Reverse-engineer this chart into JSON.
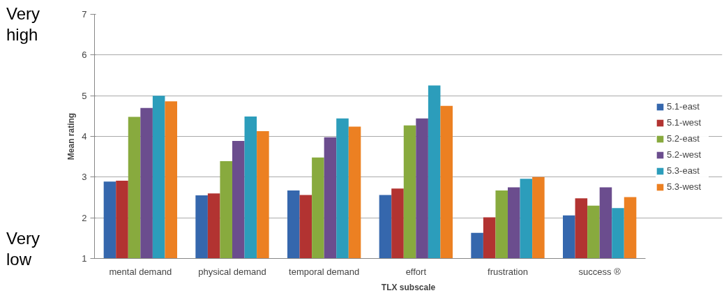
{
  "chart_data": {
    "type": "bar",
    "xlabel": "TLX subscale",
    "ylabel": "Mean rating",
    "categories": [
      "mental demand",
      "physical demand",
      "temporal demand",
      "effort",
      "frustration",
      "success ®"
    ],
    "series": [
      {
        "name": "5.1-east",
        "color": "#3567ad",
        "values": [
          2.89,
          2.55,
          2.67,
          2.56,
          1.63,
          2.06
        ]
      },
      {
        "name": "5.1-west",
        "color": "#b23331",
        "values": [
          2.91,
          2.6,
          2.56,
          2.72,
          2.01,
          2.48
        ]
      },
      {
        "name": "5.2-east",
        "color": "#88aa3e",
        "values": [
          4.48,
          3.39,
          3.48,
          4.27,
          2.67,
          2.3
        ]
      },
      {
        "name": "5.2-west",
        "color": "#6b4d8e",
        "values": [
          4.7,
          3.89,
          3.98,
          4.44,
          2.75,
          2.75
        ]
      },
      {
        "name": "5.3-east",
        "color": "#2c9dbb",
        "values": [
          5.0,
          4.49,
          4.44,
          5.25,
          2.96,
          2.24
        ]
      },
      {
        "name": "5.3-west",
        "color": "#ec8022",
        "values": [
          4.86,
          4.13,
          4.24,
          4.75,
          3.0,
          2.51
        ]
      }
    ],
    "ylim": [
      1,
      7
    ],
    "yticks": [
      1,
      2,
      3,
      4,
      5,
      6,
      7
    ],
    "grid": "y",
    "legend": "right",
    "annotations": [
      "Very high",
      "Very low"
    ]
  }
}
